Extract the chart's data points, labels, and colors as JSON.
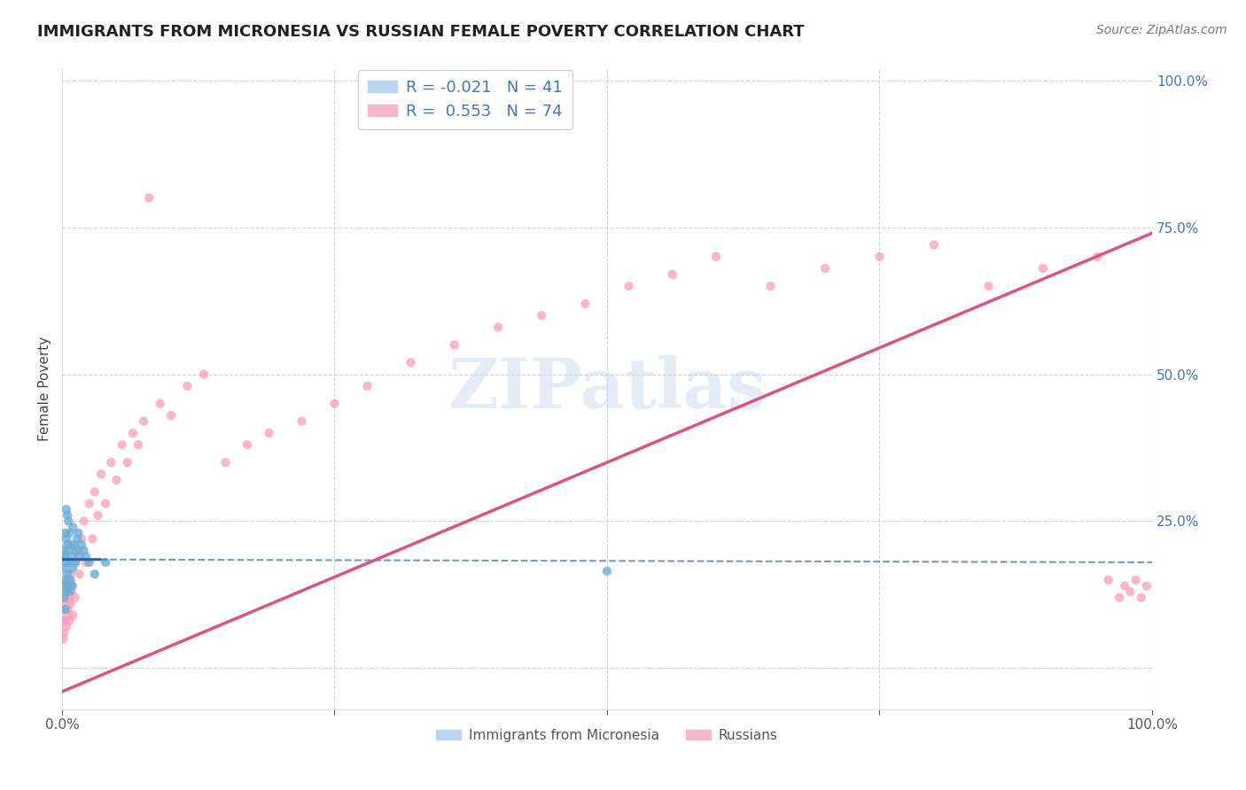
{
  "title": "IMMIGRANTS FROM MICRONESIA VS RUSSIAN FEMALE POVERTY CORRELATION CHART",
  "source": "Source: ZipAtlas.com",
  "ylabel": "Female Poverty",
  "legend_blue_label": "R = -0.021  N = 41",
  "legend_pink_label": "R =  0.553  N = 74",
  "blue_color": "#6baed6",
  "pink_color": "#fa9fb5",
  "blue_line_color": "#2166ac",
  "pink_line_color": "#e05080",
  "background_color": "#ffffff",
  "blue_scatter_x": [
    0.001,
    0.001,
    0.002,
    0.002,
    0.002,
    0.003,
    0.003,
    0.003,
    0.003,
    0.004,
    0.004,
    0.004,
    0.004,
    0.005,
    0.005,
    0.005,
    0.006,
    0.006,
    0.006,
    0.007,
    0.007,
    0.007,
    0.008,
    0.008,
    0.009,
    0.009,
    0.01,
    0.01,
    0.011,
    0.012,
    0.013,
    0.014,
    0.015,
    0.016,
    0.018,
    0.02,
    0.022,
    0.025,
    0.03,
    0.04,
    0.5
  ],
  "blue_scatter_y": [
    0.19,
    0.14,
    0.2,
    0.17,
    0.12,
    0.23,
    0.19,
    0.15,
    0.1,
    0.27,
    0.22,
    0.18,
    0.13,
    0.26,
    0.21,
    0.16,
    0.25,
    0.2,
    0.14,
    0.23,
    0.18,
    0.13,
    0.21,
    0.15,
    0.19,
    0.14,
    0.24,
    0.17,
    0.21,
    0.18,
    0.2,
    0.22,
    0.23,
    0.19,
    0.21,
    0.2,
    0.19,
    0.18,
    0.16,
    0.18,
    0.165
  ],
  "pink_scatter_x": [
    0.001,
    0.001,
    0.001,
    0.002,
    0.002,
    0.002,
    0.003,
    0.003,
    0.004,
    0.004,
    0.005,
    0.005,
    0.006,
    0.006,
    0.007,
    0.007,
    0.008,
    0.008,
    0.009,
    0.01,
    0.01,
    0.012,
    0.013,
    0.015,
    0.016,
    0.018,
    0.02,
    0.022,
    0.025,
    0.028,
    0.03,
    0.033,
    0.036,
    0.04,
    0.045,
    0.05,
    0.055,
    0.06,
    0.065,
    0.07,
    0.075,
    0.08,
    0.09,
    0.1,
    0.115,
    0.13,
    0.15,
    0.17,
    0.19,
    0.22,
    0.25,
    0.28,
    0.32,
    0.36,
    0.4,
    0.44,
    0.48,
    0.52,
    0.56,
    0.6,
    0.65,
    0.7,
    0.75,
    0.8,
    0.85,
    0.9,
    0.95,
    0.96,
    0.97,
    0.975,
    0.98,
    0.985,
    0.99,
    0.995
  ],
  "pink_scatter_y": [
    0.05,
    0.08,
    0.12,
    0.06,
    0.1,
    0.14,
    0.08,
    0.12,
    0.07,
    0.11,
    0.09,
    0.13,
    0.1,
    0.15,
    0.08,
    0.12,
    0.11,
    0.16,
    0.13,
    0.09,
    0.14,
    0.12,
    0.18,
    0.2,
    0.16,
    0.22,
    0.25,
    0.18,
    0.28,
    0.22,
    0.3,
    0.26,
    0.33,
    0.28,
    0.35,
    0.32,
    0.38,
    0.35,
    0.4,
    0.38,
    0.42,
    0.8,
    0.45,
    0.43,
    0.48,
    0.5,
    0.35,
    0.38,
    0.4,
    0.42,
    0.45,
    0.48,
    0.52,
    0.55,
    0.58,
    0.6,
    0.62,
    0.65,
    0.67,
    0.7,
    0.65,
    0.68,
    0.7,
    0.72,
    0.65,
    0.68,
    0.7,
    0.15,
    0.12,
    0.14,
    0.13,
    0.15,
    0.12,
    0.14
  ],
  "blue_line_x": [
    0.0,
    0.035,
    1.0
  ],
  "blue_line_y_intercept": 0.185,
  "blue_line_slope": -0.005,
  "pink_line_x0": 0.0,
  "pink_line_x1": 1.0,
  "pink_line_y0": -0.04,
  "pink_line_y1": 0.74,
  "xlim": [
    0.0,
    1.0
  ],
  "ylim": [
    -0.07,
    1.02
  ],
  "y_ticks": [
    0.0,
    0.25,
    0.5,
    0.75,
    1.0
  ],
  "right_y_tick_labels": [
    "",
    "25.0%",
    "50.0%",
    "75.0%",
    "100.0%"
  ],
  "x_tick_labels": [
    "0.0%",
    "",
    "",
    "",
    "100.0%"
  ]
}
